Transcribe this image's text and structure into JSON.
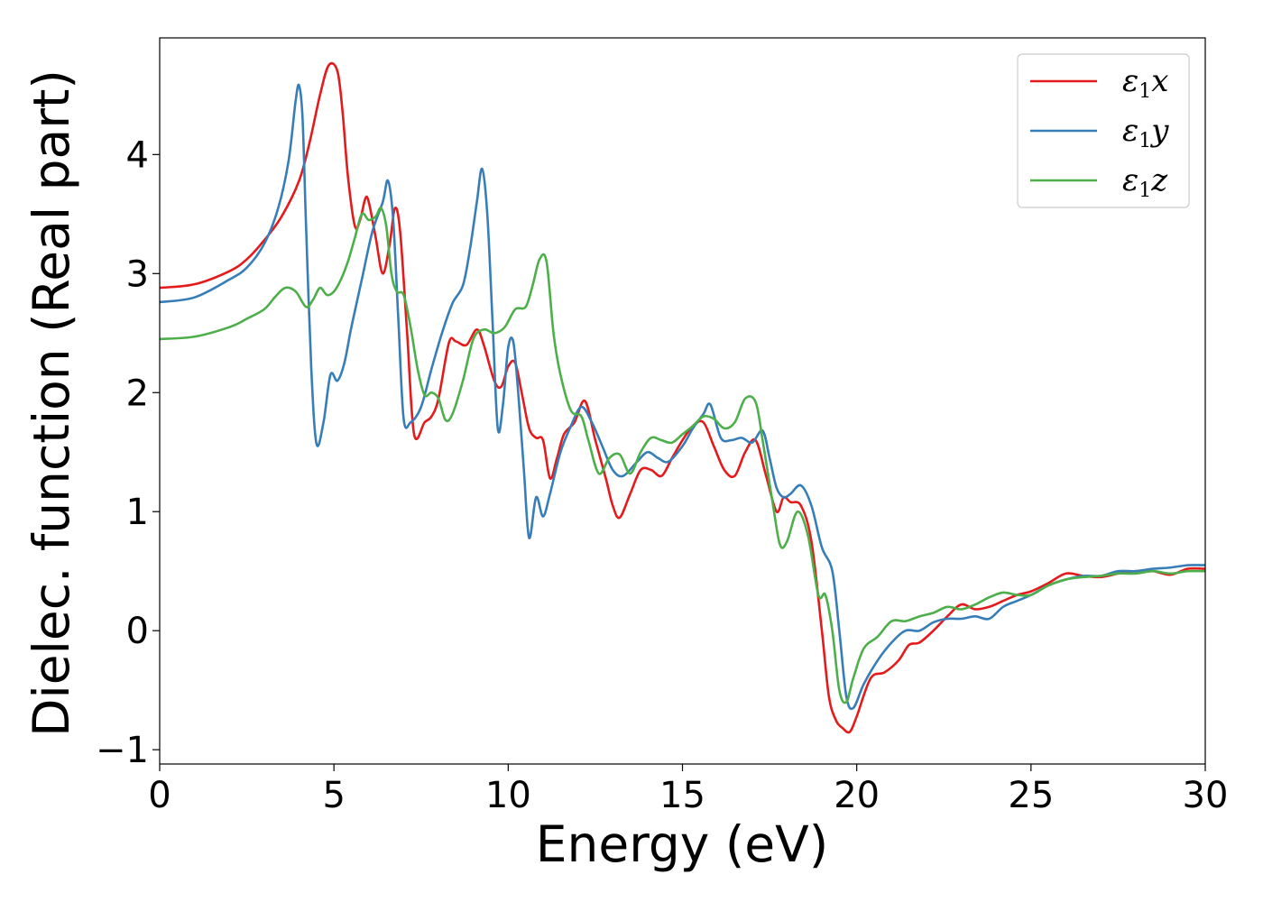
{
  "chart_data": {
    "type": "line",
    "xlabel": "Energy (eV)",
    "ylabel": "Dielec. function (Real part)",
    "xlim": [
      0,
      30
    ],
    "ylim": [
      -1.12,
      4.98
    ],
    "xticks": [
      0,
      5,
      10,
      15,
      20,
      25,
      30
    ],
    "xtick_labels": [
      "0",
      "5",
      "10",
      "15",
      "20",
      "25",
      "30"
    ],
    "yticks": [
      -1,
      0,
      1,
      2,
      3,
      4
    ],
    "ytick_labels": [
      "−1",
      "0",
      "1",
      "2",
      "3",
      "4"
    ],
    "grid": false,
    "legend_position": "top-right",
    "series": [
      {
        "name": "ε1x",
        "legend_main": "ε",
        "legend_sub": "1",
        "legend_tail": "x",
        "color": "#e41a1c",
        "x": [
          0,
          1,
          2,
          2.5,
          3,
          3.5,
          4,
          4.3,
          4.6,
          4.85,
          5.1,
          5.25,
          5.4,
          5.6,
          5.75,
          5.9,
          6.0,
          6.2,
          6.4,
          6.6,
          6.75,
          6.9,
          7.1,
          7.3,
          7.6,
          7.8,
          8.0,
          8.3,
          8.5,
          8.8,
          9.1,
          9.3,
          9.6,
          9.8,
          10.0,
          10.2,
          10.4,
          10.6,
          10.8,
          11.0,
          11.2,
          11.4,
          11.6,
          11.9,
          12.2,
          12.5,
          12.8,
          13.0,
          13.2,
          13.5,
          13.8,
          14.1,
          14.4,
          14.7,
          15.0,
          15.3,
          15.6,
          15.9,
          16.2,
          16.5,
          16.8,
          17.1,
          17.4,
          17.7,
          17.9,
          18.1,
          18.4,
          18.7,
          19.0,
          19.2,
          19.4,
          19.6,
          19.8,
          20.0,
          20.4,
          20.8,
          21.2,
          21.5,
          21.8,
          22.2,
          22.6,
          23.0,
          23.4,
          23.8,
          24.2,
          24.6,
          25.0,
          25.5,
          26.0,
          26.5,
          27.0,
          27.5,
          28.0,
          28.5,
          29.0,
          29.5,
          30
        ],
        "y": [
          2.88,
          2.91,
          3.02,
          3.12,
          3.28,
          3.48,
          3.78,
          4.1,
          4.5,
          4.75,
          4.7,
          4.35,
          3.82,
          3.4,
          3.45,
          3.63,
          3.6,
          3.3,
          3.0,
          3.25,
          3.55,
          3.35,
          2.5,
          1.65,
          1.75,
          1.8,
          1.95,
          2.42,
          2.43,
          2.4,
          2.53,
          2.4,
          2.1,
          2.05,
          2.22,
          2.25,
          1.98,
          1.7,
          1.62,
          1.6,
          1.28,
          1.45,
          1.65,
          1.75,
          1.93,
          1.6,
          1.28,
          1.05,
          0.95,
          1.15,
          1.35,
          1.35,
          1.3,
          1.45,
          1.6,
          1.72,
          1.75,
          1.55,
          1.35,
          1.3,
          1.5,
          1.6,
          1.3,
          1.0,
          1.12,
          1.08,
          1.05,
          0.75,
          0.0,
          -0.55,
          -0.75,
          -0.82,
          -0.85,
          -0.72,
          -0.4,
          -0.35,
          -0.25,
          -0.12,
          -0.1,
          0.0,
          0.12,
          0.22,
          0.18,
          0.2,
          0.25,
          0.3,
          0.33,
          0.4,
          0.48,
          0.46,
          0.45,
          0.48,
          0.5,
          0.5,
          0.47,
          0.52,
          0.52
        ]
      },
      {
        "name": "ε1y",
        "legend_main": "ε",
        "legend_sub": "1",
        "legend_tail": "y",
        "color": "#377eb8",
        "x": [
          0,
          1,
          2,
          2.5,
          3,
          3.4,
          3.7,
          3.9,
          4.0,
          4.1,
          4.2,
          4.35,
          4.5,
          4.7,
          4.9,
          5.1,
          5.3,
          5.5,
          5.8,
          6.1,
          6.4,
          6.55,
          6.7,
          6.85,
          7.0,
          7.2,
          7.5,
          7.8,
          8.1,
          8.4,
          8.7,
          8.9,
          9.1,
          9.25,
          9.4,
          9.55,
          9.7,
          9.85,
          10.0,
          10.15,
          10.3,
          10.45,
          10.6,
          10.8,
          11.0,
          11.2,
          11.5,
          11.8,
          12.1,
          12.4,
          12.7,
          13.0,
          13.3,
          13.7,
          14.0,
          14.3,
          14.6,
          15.0,
          15.3,
          15.6,
          15.8,
          16.1,
          16.4,
          16.7,
          17.0,
          17.3,
          17.5,
          17.7,
          17.9,
          18.1,
          18.4,
          18.7,
          19.0,
          19.3,
          19.5,
          19.7,
          19.9,
          20.2,
          20.6,
          21.0,
          21.4,
          21.8,
          22.2,
          22.6,
          23.0,
          23.4,
          23.8,
          24.2,
          24.6,
          25.0,
          25.5,
          26.0,
          26.5,
          27.0,
          27.5,
          28.0,
          28.5,
          29.0,
          29.5,
          30
        ],
        "y": [
          2.76,
          2.8,
          2.95,
          3.05,
          3.25,
          3.55,
          3.95,
          4.45,
          4.58,
          4.3,
          3.4,
          2.2,
          1.57,
          1.75,
          2.15,
          2.1,
          2.25,
          2.55,
          2.95,
          3.35,
          3.6,
          3.78,
          3.45,
          2.6,
          1.78,
          1.75,
          1.88,
          2.2,
          2.5,
          2.75,
          2.9,
          3.2,
          3.6,
          3.88,
          3.5,
          2.6,
          1.7,
          1.9,
          2.38,
          2.42,
          1.95,
          1.35,
          0.78,
          1.12,
          0.96,
          1.15,
          1.5,
          1.72,
          1.88,
          1.75,
          1.55,
          1.35,
          1.3,
          1.42,
          1.5,
          1.45,
          1.42,
          1.55,
          1.7,
          1.82,
          1.9,
          1.62,
          1.6,
          1.62,
          1.58,
          1.68,
          1.45,
          1.2,
          1.12,
          1.15,
          1.22,
          1.05,
          0.7,
          0.5,
          0.0,
          -0.55,
          -0.65,
          -0.45,
          -0.25,
          -0.1,
          0.0,
          0.0,
          0.07,
          0.1,
          0.1,
          0.12,
          0.1,
          0.2,
          0.25,
          0.3,
          0.38,
          0.43,
          0.46,
          0.46,
          0.5,
          0.5,
          0.52,
          0.53,
          0.55,
          0.55
        ]
      },
      {
        "name": "ε1z",
        "legend_main": "ε",
        "legend_sub": "1",
        "legend_tail": "z",
        "color": "#4daf4a",
        "x": [
          0,
          1,
          2,
          2.5,
          3,
          3.3,
          3.6,
          3.9,
          4.2,
          4.4,
          4.6,
          4.8,
          5.0,
          5.2,
          5.4,
          5.6,
          5.8,
          6.0,
          6.2,
          6.35,
          6.5,
          6.65,
          6.8,
          7.0,
          7.2,
          7.4,
          7.6,
          7.8,
          8.0,
          8.2,
          8.4,
          8.7,
          9.0,
          9.3,
          9.6,
          9.9,
          10.2,
          10.5,
          10.7,
          10.9,
          11.1,
          11.3,
          11.5,
          11.8,
          12.1,
          12.3,
          12.6,
          12.9,
          13.2,
          13.5,
          13.8,
          14.1,
          14.4,
          14.7,
          15.0,
          15.3,
          15.6,
          15.9,
          16.2,
          16.5,
          16.8,
          17.1,
          17.3,
          17.6,
          17.8,
          18.0,
          18.3,
          18.6,
          18.9,
          19.1,
          19.3,
          19.5,
          19.7,
          19.9,
          20.2,
          20.6,
          21.0,
          21.4,
          21.8,
          22.2,
          22.6,
          23.0,
          23.4,
          23.8,
          24.2,
          24.6,
          25.0,
          25.5,
          26.0,
          26.5,
          27.0,
          27.5,
          28.0,
          28.5,
          29.0,
          29.5,
          30
        ],
        "y": [
          2.45,
          2.47,
          2.55,
          2.62,
          2.7,
          2.8,
          2.88,
          2.85,
          2.72,
          2.78,
          2.88,
          2.82,
          2.85,
          2.95,
          3.1,
          3.3,
          3.5,
          3.45,
          3.48,
          3.55,
          3.4,
          3.0,
          2.85,
          2.82,
          2.55,
          2.2,
          1.98,
          2.0,
          1.95,
          1.77,
          1.82,
          2.1,
          2.45,
          2.53,
          2.5,
          2.55,
          2.7,
          2.72,
          2.9,
          3.12,
          3.1,
          2.5,
          2.15,
          1.85,
          1.8,
          1.6,
          1.32,
          1.45,
          1.48,
          1.32,
          1.5,
          1.62,
          1.6,
          1.58,
          1.65,
          1.72,
          1.8,
          1.78,
          1.7,
          1.75,
          1.95,
          1.92,
          1.6,
          1.05,
          0.72,
          0.75,
          1.0,
          0.8,
          0.3,
          0.3,
          0.0,
          -0.5,
          -0.6,
          -0.4,
          -0.15,
          -0.05,
          0.08,
          0.08,
          0.12,
          0.15,
          0.2,
          0.18,
          0.22,
          0.28,
          0.32,
          0.3,
          0.3,
          0.38,
          0.43,
          0.45,
          0.46,
          0.48,
          0.48,
          0.5,
          0.48,
          0.5,
          0.5
        ]
      }
    ]
  }
}
